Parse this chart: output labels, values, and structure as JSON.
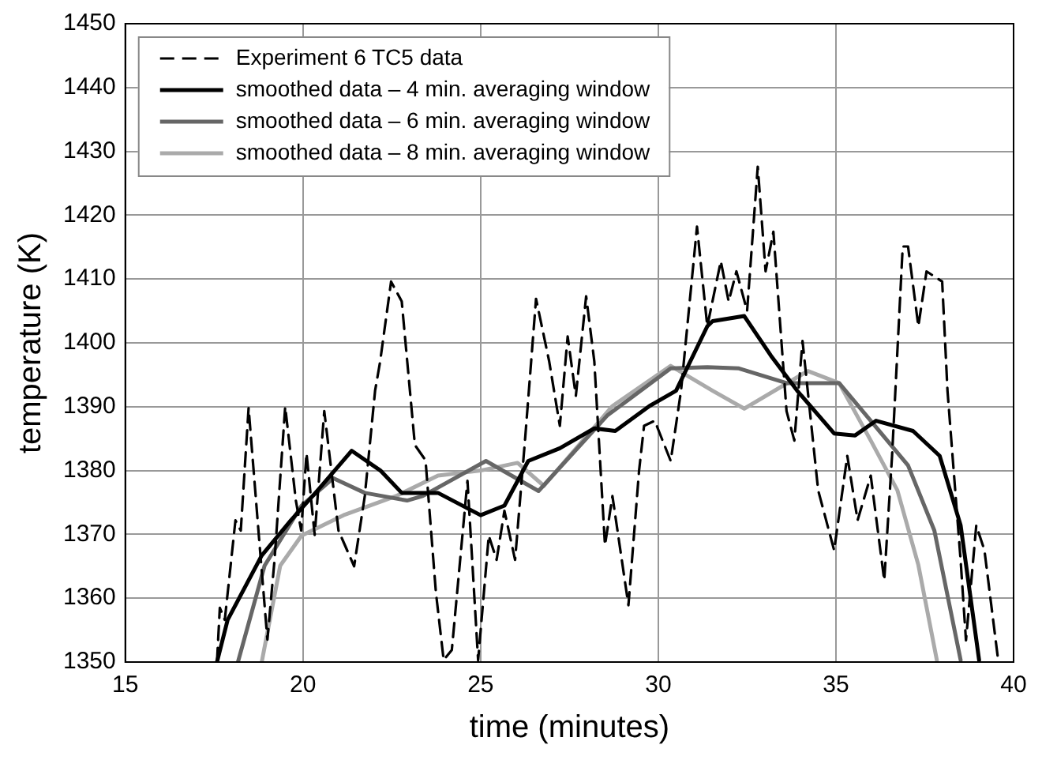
{
  "chart_data": {
    "type": "line",
    "xlabel": "time (minutes)",
    "ylabel": "temperature (K)",
    "xlim": [
      15,
      40
    ],
    "xticks": [
      15,
      20,
      25,
      30,
      35,
      40
    ],
    "ylim": [
      1350,
      1450
    ],
    "yticks": [
      1350,
      1360,
      1370,
      1380,
      1390,
      1400,
      1410,
      1420,
      1430,
      1440,
      1450
    ],
    "grid": true,
    "legend": "top left",
    "marker": "none",
    "series": [
      {
        "name": "Experiment 6 TC5 data",
        "color": "#000000",
        "line_style": "dashed",
        "x": [
          17.58,
          17.66,
          17.8,
          18.1,
          18.25,
          18.47,
          18.77,
          19.0,
          19.2,
          19.5,
          19.8,
          19.95,
          20.1,
          20.33,
          20.6,
          21.0,
          21.44,
          21.74,
          22.03,
          22.17,
          22.48,
          22.78,
          23.15,
          23.45,
          23.74,
          23.96,
          24.19,
          24.63,
          24.93,
          25.23,
          25.45,
          25.67,
          25.97,
          26.26,
          26.56,
          26.93,
          27.23,
          27.45,
          27.68,
          27.97,
          28.2,
          28.5,
          28.71,
          29.16,
          29.46,
          29.6,
          29.9,
          30.35,
          30.64,
          31.09,
          31.38,
          31.76,
          31.98,
          32.2,
          32.5,
          32.8,
          33.02,
          33.24,
          33.61,
          33.83,
          34.06,
          34.5,
          34.95,
          35.32,
          35.61,
          35.98,
          36.36,
          36.58,
          36.88,
          37.03,
          37.32,
          37.55,
          37.99,
          38.14,
          38.51,
          38.66,
          38.95,
          39.18,
          39.55,
          39.7
        ],
        "values": [
          1350,
          1358.5,
          1356.6,
          1372.2,
          1370.6,
          1389.8,
          1369,
          1353.5,
          1366,
          1390,
          1375.3,
          1370.6,
          1382.7,
          1369.9,
          1389.3,
          1370.6,
          1365,
          1376,
          1392.5,
          1397,
          1409.6,
          1406.5,
          1384,
          1381.6,
          1361,
          1350.3,
          1351.9,
          1378.4,
          1350.3,
          1369.8,
          1366,
          1373.7,
          1366,
          1385.5,
          1406.9,
          1397.1,
          1387,
          1401,
          1391.7,
          1407.3,
          1397.1,
          1368.3,
          1376,
          1358.9,
          1380,
          1387,
          1387.8,
          1381.5,
          1392.5,
          1418.2,
          1402.6,
          1412.8,
          1406.5,
          1411.2,
          1405,
          1427.6,
          1411.2,
          1417.4,
          1389.3,
          1384.7,
          1400.3,
          1376.9,
          1367.5,
          1382.3,
          1372.2,
          1379.2,
          1362.8,
          1382.3,
          1415.1,
          1415.1,
          1402.6,
          1411.2,
          1409.6,
          1392.5,
          1365.9,
          1353.4,
          1371.4,
          1367.5,
          1351,
          1350.3
        ]
      },
      {
        "name": "smoothed data – 4 min. averaging window",
        "color": "#000000",
        "line_style": "solid",
        "x": [
          17.58,
          17.88,
          18.84,
          19.66,
          20.4,
          21.37,
          22.18,
          22.78,
          23.8,
          25.0,
          25.67,
          26.34,
          27.23,
          28.2,
          28.79,
          29.75,
          30.5,
          31.38,
          31.53,
          32.42,
          33.17,
          33.91,
          34.95,
          35.54,
          36.13,
          37.17,
          37.92,
          38.51,
          39.03
        ],
        "values": [
          1350,
          1356.6,
          1366.7,
          1372.2,
          1376.8,
          1383.1,
          1380,
          1376.5,
          1376.5,
          1373,
          1374.5,
          1381.5,
          1383.5,
          1386.6,
          1386.2,
          1390.1,
          1392.5,
          1402.6,
          1403.4,
          1404.2,
          1398,
          1392.5,
          1385.8,
          1385.5,
          1387.8,
          1386.2,
          1382.3,
          1371.4,
          1350.3
        ]
      },
      {
        "name": "smoothed data – 6 min. averaging window",
        "color": "#666666",
        "line_style": "solid",
        "x": [
          18.17,
          18.92,
          19.96,
          20.85,
          21.74,
          22.93,
          23.37,
          25.15,
          26.63,
          28.56,
          30.35,
          31.38,
          32.27,
          33.61,
          35.09,
          35.98,
          37.03,
          37.77,
          38.51
        ],
        "values": [
          1350,
          1365.1,
          1374.5,
          1378.8,
          1376.5,
          1375.3,
          1376,
          1381.5,
          1376.8,
          1388.6,
          1396,
          1396.2,
          1396,
          1393.7,
          1393.7,
          1387.8,
          1380.8,
          1370.6,
          1350.3
        ]
      },
      {
        "name": "smoothed data – 8 min. averaging window",
        "color": "#aaaaaa",
        "line_style": "solid",
        "x": [
          18.84,
          19.36,
          19.96,
          21.14,
          22.62,
          23.8,
          25.0,
          26.04,
          26.78,
          28.71,
          30.35,
          31.53,
          32.42,
          34.21,
          35.09,
          35.98,
          36.73,
          37.32,
          37.84
        ],
        "values": [
          1350,
          1365.1,
          1369.8,
          1373,
          1376,
          1379.2,
          1380,
          1381.2,
          1377.6,
          1390.1,
          1396.4,
          1392.5,
          1389.7,
          1395.6,
          1393.7,
          1384.7,
          1376.9,
          1365.2,
          1350.3
        ]
      }
    ]
  }
}
